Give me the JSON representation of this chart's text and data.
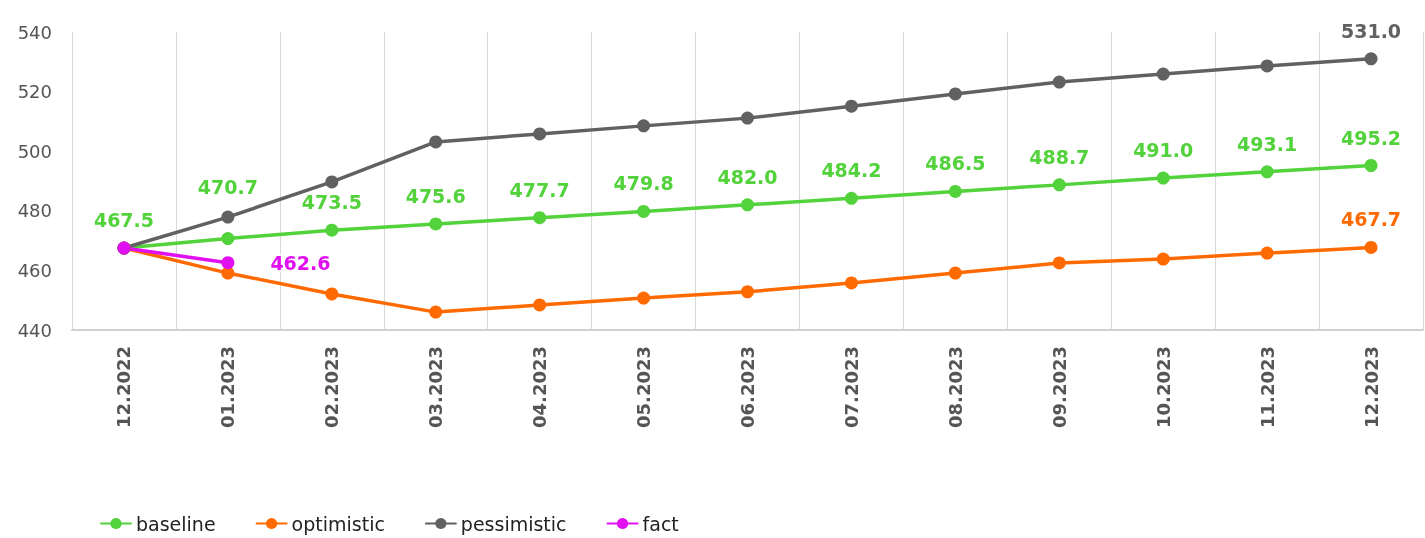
{
  "chart_data": {
    "type": "line",
    "categories": [
      "12.2022",
      "01.2023",
      "02.2023",
      "03.2023",
      "04.2023",
      "05.2023",
      "06.2023",
      "07.2023",
      "08.2023",
      "09.2023",
      "10.2023",
      "11.2023",
      "12.2023"
    ],
    "series": [
      {
        "name": "baseline",
        "color": "#52d23b",
        "values": [
          467.5,
          470.7,
          473.5,
          475.6,
          477.7,
          479.8,
          482.0,
          484.2,
          486.5,
          488.7,
          491.0,
          493.1,
          495.2
        ],
        "value_labels": [
          "467.5",
          "470.7",
          "473.5",
          "475.6",
          "477.7",
          "479.8",
          "482.0",
          "484.2",
          "486.5",
          "488.7",
          "491.0",
          "493.1",
          "495.2"
        ]
      },
      {
        "name": "optimistic",
        "color": "#ff6a00",
        "values": [
          467.5,
          459.1,
          452.1,
          446.0,
          448.4,
          450.7,
          452.8,
          455.8,
          459.1,
          462.5,
          463.8,
          465.8,
          467.7
        ],
        "value_labels": [
          null,
          null,
          null,
          null,
          null,
          null,
          null,
          null,
          null,
          null,
          null,
          null,
          "467.7"
        ]
      },
      {
        "name": "pessimistic",
        "color": "#616161",
        "values": [
          467.5,
          477.9,
          489.7,
          503.1,
          505.8,
          508.5,
          511.1,
          515.1,
          519.2,
          523.2,
          525.9,
          528.6,
          531.0
        ],
        "value_labels": [
          null,
          null,
          null,
          null,
          null,
          null,
          null,
          null,
          null,
          null,
          null,
          null,
          "531.0"
        ]
      },
      {
        "name": "fact",
        "color": "#e010f0",
        "values": [
          467.5,
          462.6,
          null,
          null,
          null,
          null,
          null,
          null,
          null,
          null,
          null,
          null,
          null
        ],
        "value_labels": [
          null,
          "462.6",
          null,
          null,
          null,
          null,
          null,
          null,
          null,
          null,
          null,
          null,
          null
        ]
      }
    ],
    "ylim": [
      440,
      540
    ],
    "yticks": [
      440,
      460,
      480,
      500,
      520,
      540
    ],
    "grid": "x",
    "legend": "bottom",
    "marker": "circle",
    "line_style": "solid"
  }
}
